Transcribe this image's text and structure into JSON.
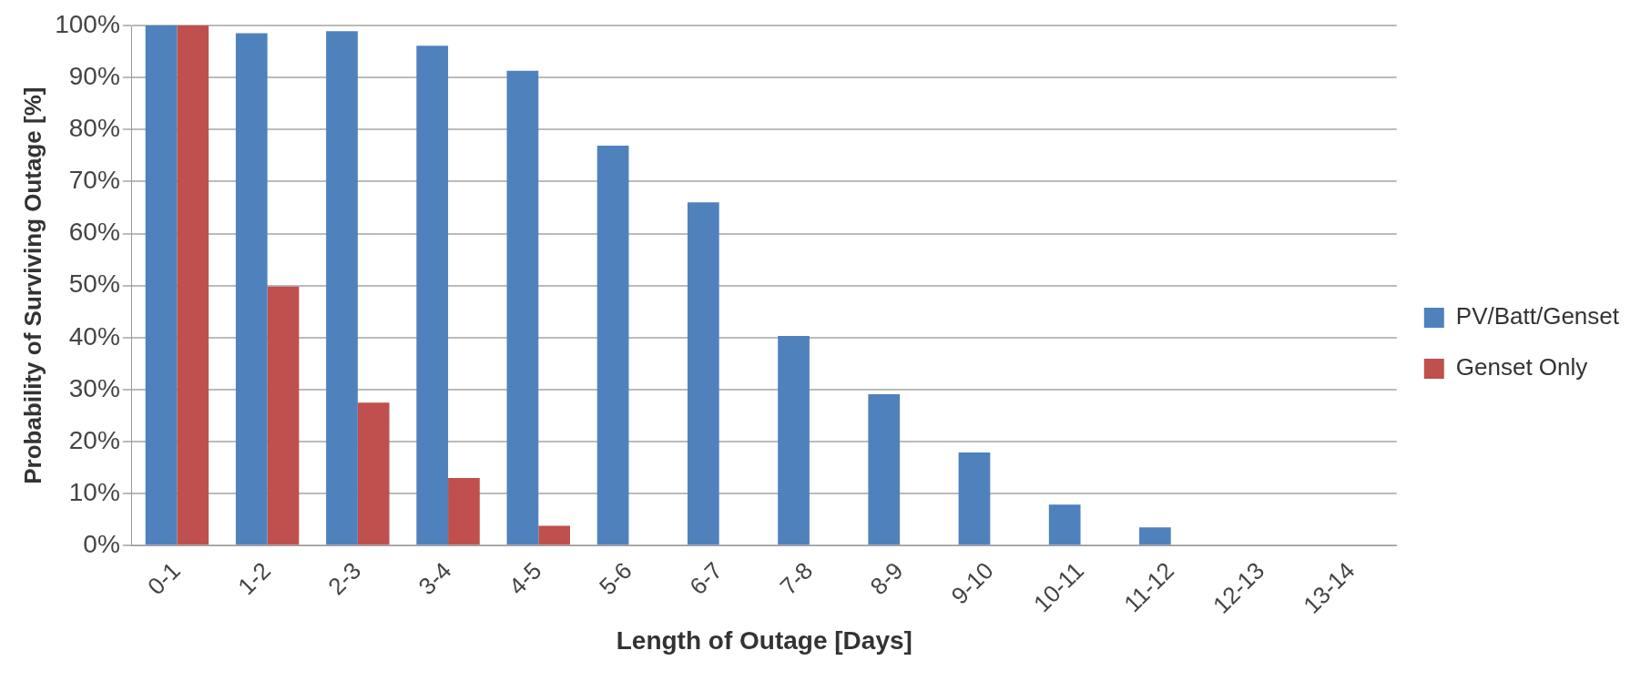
{
  "chart_data": {
    "type": "bar",
    "xlabel": "Length of Outage [Days]",
    "ylabel": "Probability of Surviving Outage [%]",
    "categories": [
      "0-1",
      "1-2",
      "2-3",
      "3-4",
      "4-5",
      "5-6",
      "6-7",
      "7-8",
      "8-9",
      "9-10",
      "10-11",
      "11-12",
      "12-13",
      "13-14"
    ],
    "series": [
      {
        "name": "PV/Batt/Genset",
        "color": "#4f81bd",
        "values": [
          100,
          98.5,
          98.9,
          96.1,
          91.3,
          76.9,
          66,
          40.3,
          29.1,
          17.9,
          7.9,
          3.5,
          0,
          0
        ]
      },
      {
        "name": "Genset Only",
        "color": "#c0504d",
        "values": [
          100,
          49.8,
          27.5,
          13,
          3.8,
          0,
          0,
          0,
          0,
          0,
          0,
          0,
          0,
          0
        ]
      }
    ],
    "ylim": [
      0,
      100
    ],
    "yticks": [
      {
        "value": 0,
        "label": "0%"
      },
      {
        "value": 10,
        "label": "10%"
      },
      {
        "value": 20,
        "label": "20%"
      },
      {
        "value": 30,
        "label": "30%"
      },
      {
        "value": 40,
        "label": "40%"
      },
      {
        "value": 50,
        "label": "50%"
      },
      {
        "value": 60,
        "label": "60%"
      },
      {
        "value": 70,
        "label": "70%"
      },
      {
        "value": 80,
        "label": "80%"
      },
      {
        "value": 90,
        "label": "90%"
      },
      {
        "value": 100,
        "label": "100%"
      }
    ],
    "grid": "y",
    "legend": "right"
  }
}
